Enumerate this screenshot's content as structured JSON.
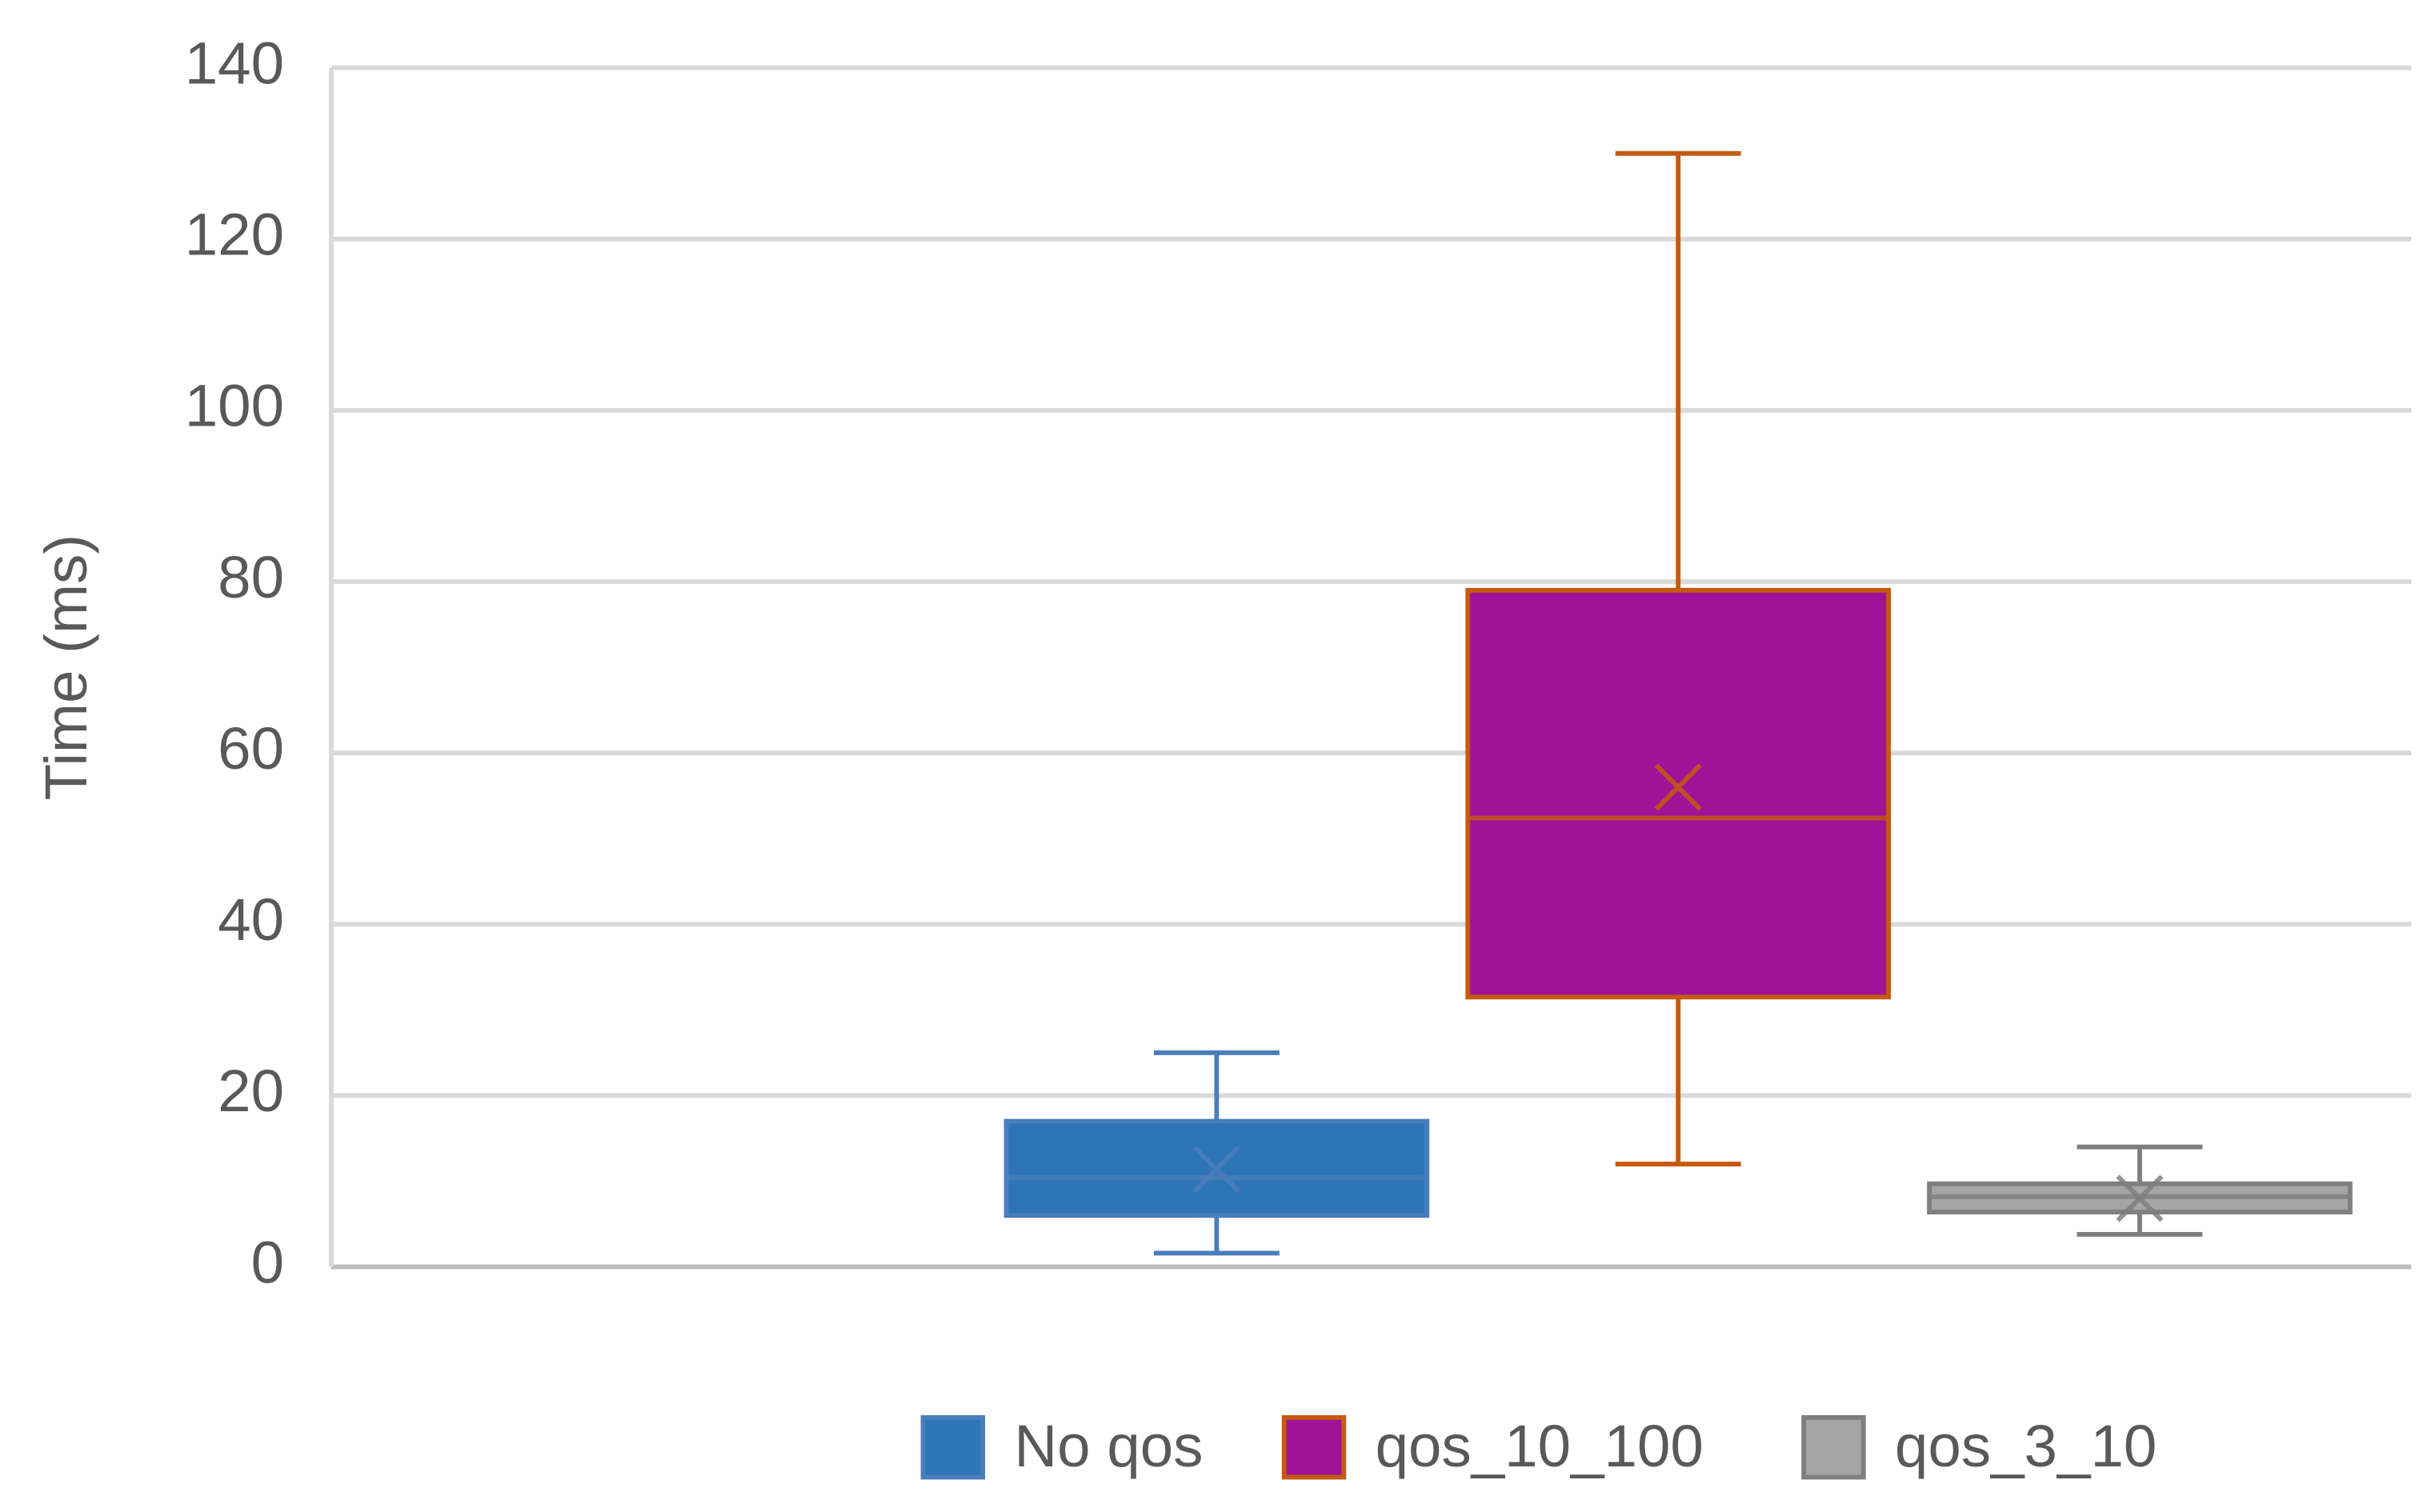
{
  "chart_data": {
    "type": "box",
    "y_label": "Time (ms)",
    "ylim": [
      0,
      140
    ],
    "yticks": [
      0,
      20,
      40,
      60,
      80,
      100,
      120,
      140
    ],
    "grid": true,
    "legend": "bottom",
    "series": [
      {
        "name": "No qos",
        "color": "#2e75b6",
        "edge_color": "#4a7ebb",
        "min": 1.6,
        "q1": 6,
        "median": 10.4,
        "q3": 17,
        "max": 25,
        "mean": 11.4
      },
      {
        "name": "qos_10_100",
        "color": "#a01296",
        "edge_color": "#c55a11",
        "min": 12,
        "q1": 31.5,
        "median": 52.4,
        "q3": 79,
        "max": 130,
        "mean": 56
      },
      {
        "name": "qos_3_10",
        "color": "#a5a5a5",
        "edge_color": "#7f7f7f",
        "min": 3.8,
        "q1": 6.4,
        "median": 8.2,
        "q3": 9.7,
        "max": 14,
        "mean": 8
      }
    ]
  }
}
